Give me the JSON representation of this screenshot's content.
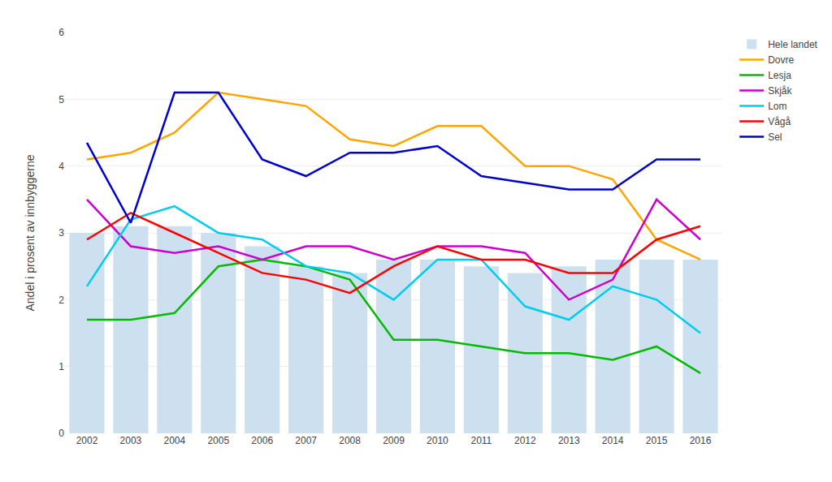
{
  "chart_data": {
    "type": "bar",
    "y_label": "Andel i prosent av innbyggerne",
    "categories": [
      2002,
      2003,
      2004,
      2005,
      2006,
      2007,
      2008,
      2009,
      2010,
      2011,
      2012,
      2013,
      2014,
      2015,
      2016
    ],
    "series": [
      {
        "name": "Hele landet",
        "type": "bar",
        "color": "#cce0f0",
        "values": [
          3.0,
          3.1,
          3.1,
          3.0,
          2.8,
          2.5,
          2.4,
          2.6,
          2.6,
          2.5,
          2.4,
          2.5,
          2.6,
          2.6,
          2.6
        ]
      },
      {
        "name": "Dovre",
        "type": "line",
        "color": "#FFA500",
        "values": [
          4.1,
          4.2,
          4.5,
          5.1,
          5.0,
          4.9,
          4.4,
          4.3,
          4.6,
          4.6,
          4.0,
          4.0,
          3.8,
          2.9,
          2.6
        ]
      },
      {
        "name": "Lesja",
        "type": "line",
        "color": "#00BB00",
        "values": [
          1.7,
          1.7,
          1.8,
          2.5,
          2.6,
          2.5,
          2.3,
          1.4,
          1.4,
          1.3,
          1.2,
          1.2,
          1.1,
          1.3,
          0.9
        ]
      },
      {
        "name": "Skjåk",
        "type": "line",
        "color": "#CC00CC",
        "values": [
          3.5,
          2.8,
          2.7,
          2.8,
          2.6,
          2.8,
          2.8,
          2.6,
          2.8,
          2.8,
          2.7,
          2.0,
          2.3,
          3.5,
          2.9
        ]
      },
      {
        "name": "Lom",
        "type": "line",
        "color": "#00CCEE",
        "values": [
          2.2,
          3.2,
          3.4,
          3.0,
          2.9,
          2.5,
          2.4,
          2.0,
          2.6,
          2.6,
          1.9,
          1.7,
          2.2,
          2.0,
          1.5
        ]
      },
      {
        "name": "Vågå",
        "type": "line",
        "color": "#FF0000",
        "values": [
          2.9,
          3.3,
          3.0,
          2.7,
          2.4,
          2.3,
          2.1,
          2.5,
          2.8,
          2.6,
          2.6,
          2.4,
          2.4,
          2.9,
          3.1
        ]
      },
      {
        "name": "Sel",
        "type": "line",
        "color": "#0000CC",
        "values": [
          4.35,
          3.15,
          5.1,
          5.1,
          4.1,
          3.85,
          4.2,
          4.2,
          4.3,
          3.85,
          3.75,
          3.65,
          3.65,
          4.1,
          4.1
        ]
      }
    ],
    "ylim": [
      0,
      6
    ],
    "yticks": [
      0,
      1,
      2,
      3,
      4,
      5,
      6
    ],
    "grid": true,
    "legend": "right"
  }
}
